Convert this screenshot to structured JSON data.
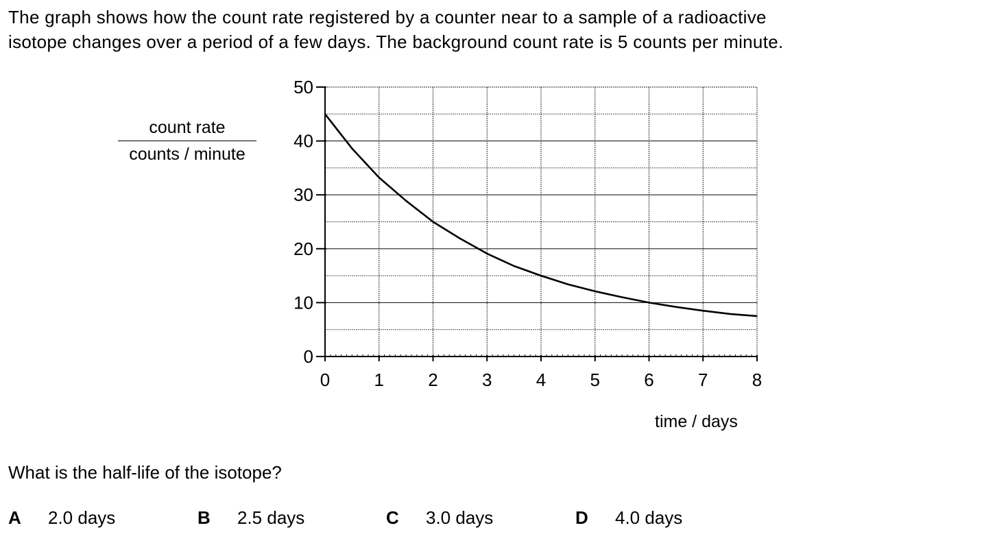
{
  "intro": {
    "line1": "The graph shows how the count rate registered by a counter near to a sample of a radioactive",
    "line2": "isotope changes over a period of a few days. The background count rate is 5 counts per minute."
  },
  "chart_data": {
    "type": "line",
    "ylabel_numerator": "count rate",
    "ylabel_denominator": "counts / minute",
    "xlabel": "time / days",
    "xlim": [
      0,
      8
    ],
    "ylim": [
      0,
      50
    ],
    "x_ticks": [
      "0",
      "1",
      "2",
      "3",
      "4",
      "5",
      "6",
      "7",
      "8"
    ],
    "y_ticks": [
      "0",
      "10",
      "20",
      "30",
      "40",
      "50"
    ],
    "grid": true,
    "series": [
      {
        "x": [
          0,
          0.5,
          1,
          1.5,
          2,
          2.5,
          3,
          3.5,
          4,
          4.5,
          5,
          5.5,
          6,
          6.5,
          7,
          7.5,
          8
        ],
        "y": [
          45,
          38.6,
          33.2,
          28.9,
          25.0,
          21.9,
          19.1,
          16.8,
          15.0,
          13.4,
          12.1,
          11.0,
          10.0,
          9.2,
          8.5,
          7.9,
          7.5
        ]
      }
    ]
  },
  "question": "What is the half-life of the isotope?",
  "options": [
    {
      "letter": "A",
      "text": "2.0 days"
    },
    {
      "letter": "B",
      "text": "2.5 days"
    },
    {
      "letter": "C",
      "text": "3.0 days"
    },
    {
      "letter": "D",
      "text": "4.0 days"
    }
  ]
}
